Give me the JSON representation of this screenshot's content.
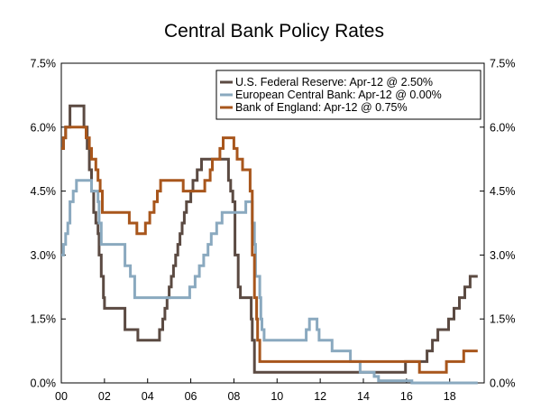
{
  "chart_data": {
    "type": "line",
    "title": "Central Bank Policy Rates",
    "x_ticks": [
      "00",
      "02",
      "04",
      "06",
      "08",
      "10",
      "12",
      "14",
      "16",
      "18"
    ],
    "x_tick_years": [
      2000,
      2002,
      2004,
      2006,
      2008,
      2010,
      2012,
      2014,
      2016,
      2018
    ],
    "xlim": [
      2000,
      2019.6
    ],
    "y_ticks_left": [
      "0.0%",
      "1.5%",
      "3.0%",
      "4.5%",
      "6.0%",
      "7.5%"
    ],
    "y_ticks_right": [
      "0.0%",
      "1.5%",
      "3.0%",
      "4.5%",
      "6.0%",
      "7.5%"
    ],
    "y_tick_values": [
      0,
      1.5,
      3,
      4.5,
      6,
      7.5
    ],
    "ylim": [
      0,
      7.5
    ],
    "legend_position": "top-right",
    "series": [
      {
        "name": "U.S. Federal Reserve: Apr-12 @ 2.50%",
        "color": "#5b4a42",
        "points": [
          [
            2000.0,
            5.5
          ],
          [
            2000.1,
            5.75
          ],
          [
            2000.2,
            6.0
          ],
          [
            2000.4,
            6.5
          ],
          [
            2001.0,
            6.5
          ],
          [
            2001.05,
            6.0
          ],
          [
            2001.2,
            5.5
          ],
          [
            2001.3,
            5.0
          ],
          [
            2001.4,
            4.5
          ],
          [
            2001.5,
            4.0
          ],
          [
            2001.6,
            3.75
          ],
          [
            2001.7,
            3.5
          ],
          [
            2001.75,
            3.0
          ],
          [
            2001.85,
            2.5
          ],
          [
            2001.95,
            2.0
          ],
          [
            2002.0,
            1.75
          ],
          [
            2002.9,
            1.75
          ],
          [
            2002.95,
            1.25
          ],
          [
            2003.5,
            1.25
          ],
          [
            2003.55,
            1.0
          ],
          [
            2004.5,
            1.0
          ],
          [
            2004.55,
            1.25
          ],
          [
            2004.7,
            1.5
          ],
          [
            2004.8,
            1.75
          ],
          [
            2004.9,
            2.0
          ],
          [
            2005.0,
            2.25
          ],
          [
            2005.1,
            2.5
          ],
          [
            2005.2,
            2.75
          ],
          [
            2005.3,
            3.0
          ],
          [
            2005.4,
            3.25
          ],
          [
            2005.5,
            3.5
          ],
          [
            2005.6,
            3.75
          ],
          [
            2005.7,
            4.0
          ],
          [
            2005.8,
            4.25
          ],
          [
            2006.0,
            4.5
          ],
          [
            2006.1,
            4.75
          ],
          [
            2006.3,
            5.0
          ],
          [
            2006.5,
            5.25
          ],
          [
            2007.7,
            5.25
          ],
          [
            2007.75,
            4.75
          ],
          [
            2007.85,
            4.5
          ],
          [
            2007.95,
            4.25
          ],
          [
            2008.05,
            3.0
          ],
          [
            2008.2,
            2.25
          ],
          [
            2008.3,
            2.0
          ],
          [
            2008.8,
            1.5
          ],
          [
            2008.85,
            1.0
          ],
          [
            2008.95,
            0.25
          ],
          [
            2015.9,
            0.25
          ],
          [
            2015.95,
            0.5
          ],
          [
            2016.9,
            0.5
          ],
          [
            2016.95,
            0.75
          ],
          [
            2017.2,
            1.0
          ],
          [
            2017.45,
            1.25
          ],
          [
            2017.95,
            1.5
          ],
          [
            2018.2,
            1.75
          ],
          [
            2018.45,
            2.0
          ],
          [
            2018.7,
            2.25
          ],
          [
            2018.95,
            2.5
          ],
          [
            2019.3,
            2.5
          ]
        ]
      },
      {
        "name": "European Central Bank: Apr-12 @ 0.00%",
        "color": "#8aa9bf",
        "points": [
          [
            2000.0,
            3.0
          ],
          [
            2000.1,
            3.25
          ],
          [
            2000.2,
            3.5
          ],
          [
            2000.3,
            3.75
          ],
          [
            2000.4,
            4.25
          ],
          [
            2000.55,
            4.5
          ],
          [
            2000.7,
            4.75
          ],
          [
            2001.35,
            4.75
          ],
          [
            2001.4,
            4.5
          ],
          [
            2001.7,
            4.25
          ],
          [
            2001.75,
            3.75
          ],
          [
            2001.85,
            3.25
          ],
          [
            2002.9,
            3.25
          ],
          [
            2002.95,
            2.75
          ],
          [
            2003.2,
            2.5
          ],
          [
            2003.4,
            2.0
          ],
          [
            2005.9,
            2.0
          ],
          [
            2005.95,
            2.25
          ],
          [
            2006.2,
            2.5
          ],
          [
            2006.4,
            2.75
          ],
          [
            2006.6,
            3.0
          ],
          [
            2006.8,
            3.25
          ],
          [
            2006.95,
            3.5
          ],
          [
            2007.2,
            3.75
          ],
          [
            2007.45,
            4.0
          ],
          [
            2008.5,
            4.0
          ],
          [
            2008.55,
            4.25
          ],
          [
            2008.8,
            4.25
          ],
          [
            2008.85,
            3.75
          ],
          [
            2008.95,
            3.25
          ],
          [
            2009.0,
            2.5
          ],
          [
            2009.2,
            2.0
          ],
          [
            2009.25,
            1.5
          ],
          [
            2009.3,
            1.25
          ],
          [
            2009.4,
            1.0
          ],
          [
            2011.3,
            1.0
          ],
          [
            2011.35,
            1.25
          ],
          [
            2011.5,
            1.5
          ],
          [
            2011.85,
            1.25
          ],
          [
            2011.95,
            1.0
          ],
          [
            2012.5,
            1.0
          ],
          [
            2012.55,
            0.75
          ],
          [
            2013.35,
            0.75
          ],
          [
            2013.4,
            0.5
          ],
          [
            2013.85,
            0.25
          ],
          [
            2014.45,
            0.25
          ],
          [
            2014.5,
            0.15
          ],
          [
            2014.7,
            0.05
          ],
          [
            2016.2,
            0.05
          ],
          [
            2016.25,
            0.0
          ],
          [
            2019.3,
            0.0
          ]
        ]
      },
      {
        "name": "Bank of England: Apr-12 @ 0.75%",
        "color": "#a8561c",
        "points": [
          [
            2000.0,
            5.5
          ],
          [
            2000.1,
            5.75
          ],
          [
            2000.2,
            6.0
          ],
          [
            2001.1,
            6.0
          ],
          [
            2001.15,
            5.75
          ],
          [
            2001.3,
            5.5
          ],
          [
            2001.4,
            5.25
          ],
          [
            2001.6,
            5.0
          ],
          [
            2001.7,
            4.75
          ],
          [
            2001.8,
            4.5
          ],
          [
            2001.9,
            4.0
          ],
          [
            2003.1,
            4.0
          ],
          [
            2003.15,
            3.75
          ],
          [
            2003.5,
            3.5
          ],
          [
            2003.85,
            3.5
          ],
          [
            2003.9,
            3.75
          ],
          [
            2004.1,
            4.0
          ],
          [
            2004.3,
            4.25
          ],
          [
            2004.45,
            4.5
          ],
          [
            2004.6,
            4.75
          ],
          [
            2005.6,
            4.75
          ],
          [
            2005.65,
            4.5
          ],
          [
            2006.6,
            4.5
          ],
          [
            2006.65,
            4.75
          ],
          [
            2006.9,
            5.0
          ],
          [
            2007.0,
            5.25
          ],
          [
            2007.35,
            5.5
          ],
          [
            2007.5,
            5.75
          ],
          [
            2007.95,
            5.75
          ],
          [
            2008.0,
            5.5
          ],
          [
            2008.15,
            5.25
          ],
          [
            2008.4,
            5.0
          ],
          [
            2008.75,
            4.5
          ],
          [
            2008.85,
            3.0
          ],
          [
            2008.95,
            2.0
          ],
          [
            2009.05,
            1.5
          ],
          [
            2009.1,
            1.0
          ],
          [
            2009.2,
            0.5
          ],
          [
            2016.55,
            0.5
          ],
          [
            2016.6,
            0.25
          ],
          [
            2017.8,
            0.25
          ],
          [
            2017.85,
            0.5
          ],
          [
            2018.6,
            0.5
          ],
          [
            2018.65,
            0.75
          ],
          [
            2019.3,
            0.75
          ]
        ]
      }
    ]
  }
}
